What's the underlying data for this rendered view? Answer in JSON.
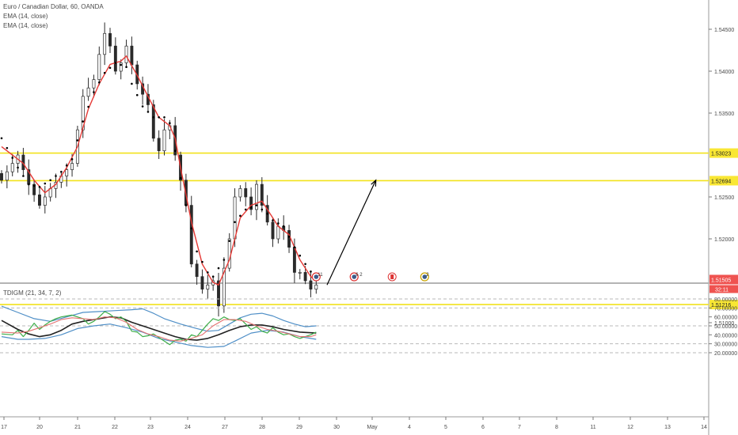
{
  "header": {
    "symbol_line": "Euro / Canadian Dollar, 60, OANDA",
    "ema_label_1": "EMA (14, close)",
    "ema_label_2": "EMA (14, close)",
    "indicator_label": "TDIGM (21, 34, 7, 2)"
  },
  "colors": {
    "candle": "#2a2a2a",
    "ema_red": "#e53935",
    "ema_dots": "#000000",
    "hline": "#f2e21b",
    "tdi_band": "#4f8fc7",
    "tdi_mid": "#222222",
    "tdi_green": "#3fae49",
    "tdi_red": "#e57373",
    "price_badge": "#ef5350",
    "level_badge": "#f9e734",
    "grid": "#b9b9b9"
  },
  "chart_data": [
    {
      "type": "candlestick",
      "title": "Euro / Canadian Dollar, 60, OANDA",
      "ylim": [
        1.5085,
        1.5485
      ],
      "y_ticks": [
        "1.54500",
        "1.54000",
        "1.53500",
        "1.52500",
        "1.52000",
        "1.51000"
      ],
      "x_ticks": [
        "17",
        "20",
        "21",
        "22",
        "23",
        "24",
        "27",
        "28",
        "29",
        "30",
        "May",
        "4",
        "5",
        "6",
        "7",
        "8",
        "11",
        "12",
        "13",
        "14"
      ],
      "horizontal_levels": [
        "1.53023",
        "1.52694",
        "1.51216"
      ],
      "current_price": "1.51505",
      "countdown": "32:11",
      "close_path": [
        [
          0,
          1.527
        ],
        [
          3,
          1.53
        ],
        [
          5,
          1.5265
        ],
        [
          7,
          1.524
        ],
        [
          9,
          1.526
        ],
        [
          11,
          1.5275
        ],
        [
          13,
          1.529
        ],
        [
          15,
          1.537
        ],
        [
          17,
          1.539
        ],
        [
          18,
          1.542
        ],
        [
          19,
          1.5445
        ],
        [
          20,
          1.543
        ],
        [
          21,
          1.54
        ],
        [
          22,
          1.541
        ],
        [
          23,
          1.543
        ],
        [
          25,
          1.5385
        ],
        [
          27,
          1.536
        ],
        [
          28,
          1.532
        ],
        [
          29,
          1.5305
        ],
        [
          30,
          1.533
        ],
        [
          31,
          1.5335
        ],
        [
          32,
          1.53
        ],
        [
          34,
          1.524
        ],
        [
          35,
          1.517
        ],
        [
          37,
          1.514
        ],
        [
          38,
          1.5145
        ],
        [
          39,
          1.515
        ],
        [
          40,
          1.512
        ],
        [
          41,
          1.5165
        ],
        [
          42,
          1.52
        ],
        [
          43,
          1.525
        ],
        [
          44,
          1.526
        ],
        [
          45,
          1.525
        ],
        [
          46,
          1.5235
        ],
        [
          47,
          1.5265
        ],
        [
          48,
          1.524
        ],
        [
          49,
          1.522
        ],
        [
          50,
          1.52
        ],
        [
          51,
          1.5215
        ],
        [
          52,
          1.521
        ],
        [
          53,
          1.519
        ],
        [
          54,
          1.516
        ],
        [
          55,
          1.516
        ],
        [
          56,
          1.515
        ],
        [
          57,
          1.514
        ],
        [
          58,
          1.5145
        ]
      ],
      "ema_red_path": [
        [
          0,
          1.531
        ],
        [
          4,
          1.529
        ],
        [
          6,
          1.527
        ],
        [
          8,
          1.5255
        ],
        [
          10,
          1.5265
        ],
        [
          12,
          1.5285
        ],
        [
          14,
          1.531
        ],
        [
          16,
          1.5355
        ],
        [
          18,
          1.5385
        ],
        [
          20,
          1.5408
        ],
        [
          22,
          1.5412
        ],
        [
          23,
          1.5418
        ],
        [
          25,
          1.5395
        ],
        [
          27,
          1.537
        ],
        [
          29,
          1.5345
        ],
        [
          31,
          1.5335
        ],
        [
          32,
          1.532
        ],
        [
          33,
          1.5285
        ],
        [
          35,
          1.522
        ],
        [
          37,
          1.517
        ],
        [
          39,
          1.5148
        ],
        [
          40,
          1.5145
        ],
        [
          42,
          1.5175
        ],
        [
          44,
          1.5225
        ],
        [
          46,
          1.524
        ],
        [
          48,
          1.5245
        ],
        [
          50,
          1.5225
        ],
        [
          51,
          1.5215
        ],
        [
          53,
          1.5205
        ],
        [
          55,
          1.5175
        ],
        [
          57,
          1.5155
        ],
        [
          58,
          1.515
        ]
      ],
      "ema_dot_path": [
        [
          0,
          1.532
        ],
        [
          3,
          1.5285
        ],
        [
          5,
          1.5265
        ],
        [
          7,
          1.5262
        ],
        [
          9,
          1.527
        ],
        [
          11,
          1.528
        ],
        [
          13,
          1.5295
        ],
        [
          15,
          1.534
        ],
        [
          17,
          1.5375
        ],
        [
          19,
          1.5398
        ],
        [
          21,
          1.541
        ],
        [
          23,
          1.5405
        ],
        [
          24,
          1.5385
        ],
        [
          26,
          1.5358
        ],
        [
          28,
          1.5345
        ],
        [
          30,
          1.5345
        ],
        [
          31,
          1.5338
        ],
        [
          32,
          1.5305
        ],
        [
          34,
          1.524
        ],
        [
          36,
          1.5185
        ],
        [
          38,
          1.516
        ],
        [
          39,
          1.5155
        ],
        [
          41,
          1.5175
        ],
        [
          43,
          1.522
        ],
        [
          45,
          1.5235
        ],
        [
          47,
          1.524
        ],
        [
          49,
          1.523
        ],
        [
          50,
          1.5222
        ],
        [
          52,
          1.5215
        ],
        [
          54,
          1.519
        ],
        [
          56,
          1.517
        ],
        [
          58,
          1.5152
        ]
      ],
      "projection_arrow": {
        "from": [
          60,
          1.5145
        ],
        "to": [
          69,
          1.527
        ]
      },
      "events": [
        {
          "x": 58,
          "label": "11"
        },
        {
          "x": 65,
          "label": "6 2"
        },
        {
          "x": 72,
          "label": ""
        },
        {
          "x": 78,
          "label": "2"
        }
      ]
    },
    {
      "type": "line",
      "title": "TDIGM (21, 34, 7, 2)",
      "ylim": [
        16,
        86
      ],
      "y_ticks": [
        "80.00000",
        "70.00000",
        "60.00000",
        "50.00000",
        "40.00000",
        "30.00000",
        "20.00000"
      ],
      "dashed_levels": [
        80,
        70,
        50,
        30,
        20
      ],
      "series": [
        {
          "role": "upper_band",
          "values": [
            [
              0,
              72
            ],
            [
              3,
              65
            ],
            [
              6,
              58
            ],
            [
              9,
              55
            ],
            [
              12,
              60
            ],
            [
              15,
              65
            ],
            [
              18,
              66
            ],
            [
              21,
              67
            ],
            [
              24,
              68
            ],
            [
              26,
              69
            ],
            [
              28,
              64
            ],
            [
              30,
              58
            ],
            [
              33,
              52
            ],
            [
              36,
              47
            ],
            [
              38,
              44
            ],
            [
              40,
              45
            ],
            [
              42,
              52
            ],
            [
              44,
              59
            ],
            [
              46,
              63
            ],
            [
              48,
              64
            ],
            [
              50,
              61
            ],
            [
              52,
              56
            ],
            [
              54,
              52
            ],
            [
              56,
              49
            ],
            [
              58,
              50
            ]
          ]
        },
        {
          "role": "lower_band",
          "values": [
            [
              0,
              38
            ],
            [
              3,
              35
            ],
            [
              5,
              35
            ],
            [
              8,
              36
            ],
            [
              11,
              40
            ],
            [
              14,
              47
            ],
            [
              17,
              50
            ],
            [
              20,
              52
            ],
            [
              23,
              48
            ],
            [
              26,
              43
            ],
            [
              29,
              36
            ],
            [
              32,
              32
            ],
            [
              35,
              28
            ],
            [
              38,
              26
            ],
            [
              41,
              27
            ],
            [
              43,
              33
            ],
            [
              46,
              42
            ],
            [
              49,
              45
            ],
            [
              52,
              43
            ],
            [
              55,
              38
            ],
            [
              58,
              35
            ]
          ]
        },
        {
          "role": "middle",
          "values": [
            [
              0,
              56
            ],
            [
              3,
              46
            ],
            [
              5,
              41
            ],
            [
              7,
              38
            ],
            [
              9,
              40
            ],
            [
              11,
              45
            ],
            [
              13,
              52
            ],
            [
              15,
              55
            ],
            [
              18,
              58
            ],
            [
              20,
              60
            ],
            [
              22,
              59
            ],
            [
              24,
              54
            ],
            [
              27,
              48
            ],
            [
              30,
              42
            ],
            [
              32,
              38
            ],
            [
              34,
              35
            ],
            [
              36,
              34
            ],
            [
              38,
              36
            ],
            [
              40,
              40
            ],
            [
              42,
              45
            ],
            [
              44,
              49
            ],
            [
              46,
              51
            ],
            [
              48,
              51
            ],
            [
              50,
              49
            ],
            [
              52,
              46
            ],
            [
              55,
              43
            ],
            [
              58,
              42
            ]
          ]
        },
        {
          "role": "price_line",
          "values": [
            [
              0,
              41
            ],
            [
              2,
              40
            ],
            [
              3,
              45
            ],
            [
              4,
              38
            ],
            [
              5,
              45
            ],
            [
              6,
              53
            ],
            [
              7,
              46
            ],
            [
              8,
              51
            ],
            [
              9,
              55
            ],
            [
              10,
              58
            ],
            [
              11,
              60
            ],
            [
              12,
              61
            ],
            [
              13,
              62
            ],
            [
              14,
              60
            ],
            [
              15,
              58
            ],
            [
              16,
              52
            ],
            [
              17,
              55
            ],
            [
              18,
              60
            ],
            [
              19,
              66
            ],
            [
              20,
              63
            ],
            [
              21,
              58
            ],
            [
              22,
              60
            ],
            [
              23,
              55
            ],
            [
              24,
              44
            ],
            [
              25,
              43
            ],
            [
              26,
              38
            ],
            [
              27,
              39
            ],
            [
              28,
              41
            ],
            [
              29,
              37
            ],
            [
              30,
              33
            ],
            [
              31,
              29
            ],
            [
              32,
              34
            ],
            [
              33,
              35
            ],
            [
              34,
              33
            ],
            [
              35,
              40
            ],
            [
              36,
              38
            ],
            [
              37,
              45
            ],
            [
              38,
              52
            ],
            [
              39,
              58
            ],
            [
              40,
              56
            ],
            [
              41,
              60
            ],
            [
              42,
              57
            ],
            [
              43,
              56
            ],
            [
              44,
              58
            ],
            [
              45,
              52
            ],
            [
              46,
              46
            ],
            [
              47,
              49
            ],
            [
              48,
              44
            ],
            [
              49,
              42
            ],
            [
              50,
              48
            ],
            [
              51,
              43
            ],
            [
              52,
              40
            ],
            [
              53,
              41
            ],
            [
              54,
              38
            ],
            [
              55,
              36
            ],
            [
              56,
              38
            ],
            [
              57,
              40
            ],
            [
              58,
              43
            ]
          ]
        },
        {
          "role": "signal_line",
          "values": [
            [
              0,
              43
            ],
            [
              3,
              42
            ],
            [
              5,
              44
            ],
            [
              7,
              48
            ],
            [
              9,
              52
            ],
            [
              11,
              57
            ],
            [
              13,
              59
            ],
            [
              15,
              58
            ],
            [
              17,
              57
            ],
            [
              19,
              60
            ],
            [
              21,
              59
            ],
            [
              23,
              54
            ],
            [
              25,
              46
            ],
            [
              27,
              41
            ],
            [
              29,
              38
            ],
            [
              31,
              34
            ],
            [
              33,
              33
            ],
            [
              35,
              36
            ],
            [
              37,
              40
            ],
            [
              39,
              50
            ],
            [
              41,
              57
            ],
            [
              43,
              57
            ],
            [
              45,
              55
            ],
            [
              47,
              50
            ],
            [
              49,
              46
            ],
            [
              51,
              44
            ],
            [
              53,
              41
            ],
            [
              55,
              38
            ],
            [
              57,
              38
            ],
            [
              58,
              40
            ]
          ]
        }
      ]
    }
  ]
}
